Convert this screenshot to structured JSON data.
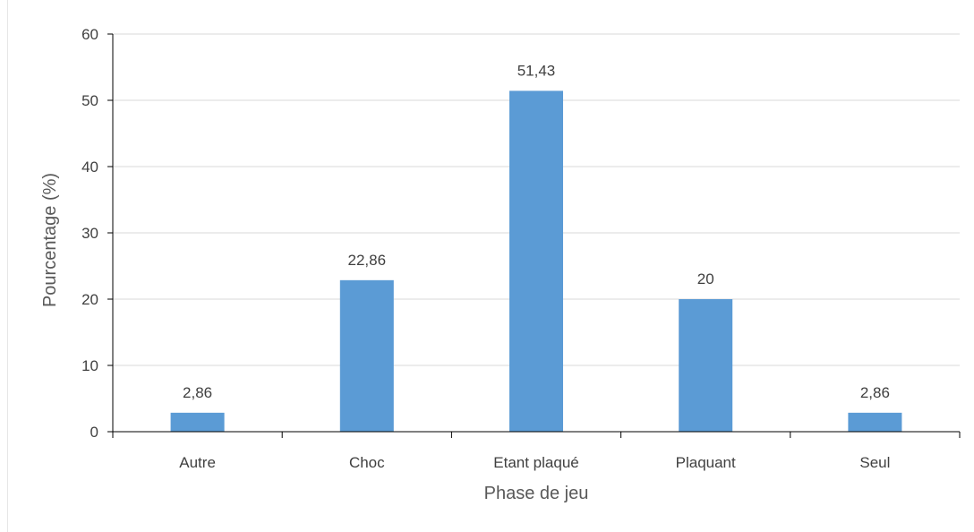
{
  "chart_data": {
    "type": "bar",
    "title": "",
    "xlabel": "Phase de jeu",
    "ylabel": "Pourcentage (%)",
    "categories": [
      "Autre",
      "Choc",
      "Etant plaqué",
      "Plaquant",
      "Seul"
    ],
    "values": [
      2.86,
      22.86,
      51.43,
      20,
      2.86
    ],
    "data_labels": [
      "2,86",
      "22,86",
      "51,43",
      "20",
      "2,86"
    ],
    "ylim": [
      0,
      60
    ],
    "yticks": [
      "0",
      "10",
      "20",
      "30",
      "40",
      "50",
      "60"
    ],
    "grid": true,
    "legend": "none",
    "colors": {
      "bar": "#5B9BD5",
      "grid": "#d9d9d9",
      "axis": "#000000",
      "text": "#404040",
      "label": "#595959"
    }
  }
}
